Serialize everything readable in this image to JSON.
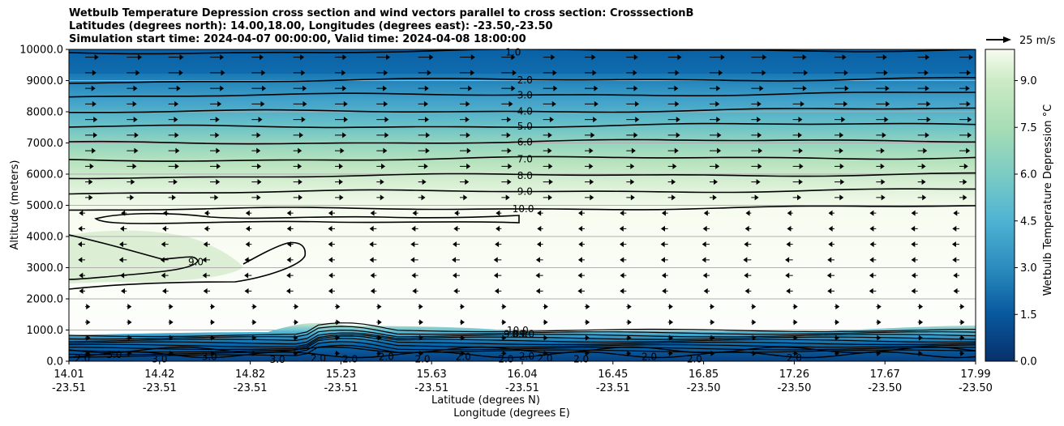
{
  "chart_data": {
    "type": "contourf",
    "title_lines": [
      "Wetbulb Temperature Depression cross section and wind vectors parallel to cross section: CrosssectionB",
      "Latitudes (degrees north): 14.00,18.00, Longitudes (degrees east): -23.50,-23.50",
      "Simulation start time: 2024-04-07 00:00:00, Valid time: 2024-04-08 18:00:00"
    ],
    "ylabel": "Altitude (meters)",
    "xlabel_lat": "Latitude (degrees N)",
    "xlabel_lon": "Longitude (degrees E)",
    "ylim": [
      0,
      10000
    ],
    "yticks": [
      "0.0",
      "1000.0",
      "2000.0",
      "3000.0",
      "4000.0",
      "5000.0",
      "6000.0",
      "7000.0",
      "8000.0",
      "9000.0",
      "10000.0"
    ],
    "xticks": [
      {
        "lat": "14.01",
        "lon": "-23.51"
      },
      {
        "lat": "14.42",
        "lon": "-23.51"
      },
      {
        "lat": "14.82",
        "lon": "-23.51"
      },
      {
        "lat": "15.23",
        "lon": "-23.51"
      },
      {
        "lat": "15.63",
        "lon": "-23.51"
      },
      {
        "lat": "16.04",
        "lon": "-23.51"
      },
      {
        "lat": "16.45",
        "lon": "-23.51"
      },
      {
        "lat": "16.85",
        "lon": "-23.50"
      },
      {
        "lat": "17.26",
        "lon": "-23.50"
      },
      {
        "lat": "17.67",
        "lon": "-23.50"
      },
      {
        "lat": "17.99",
        "lon": "-23.50"
      }
    ],
    "grid": "horizontal",
    "colorbar": {
      "label": "Wetbulb Temperature Depression °C",
      "ticks": [
        "0.0",
        "1.5",
        "3.0",
        "4.5",
        "6.0",
        "7.5",
        "9.0"
      ],
      "range": [
        0,
        10
      ],
      "colormap_start": "#08306b",
      "colormap_mid": "#4aa9cf",
      "colormap_end": "#f7fcf0"
    },
    "quiver_key": {
      "label": "25 m/s",
      "speed": 25
    },
    "contour_lines": [
      {
        "label": "1.0",
        "altitude": 9950
      },
      {
        "label": "2.0",
        "altitude": 9020
      },
      {
        "label": "3.0",
        "altitude": 8550
      },
      {
        "label": "4.0",
        "altitude": 8030
      },
      {
        "label": "5.0",
        "altitude": 7550
      },
      {
        "label": "6.0",
        "altitude": 7040
      },
      {
        "label": "7.0",
        "altitude": 6500
      },
      {
        "label": "8.0",
        "altitude": 5960
      },
      {
        "label": "9.0",
        "altitude": 5450
      },
      {
        "label": "10.0",
        "altitude": 4900
      }
    ],
    "contour_label_positions": [
      {
        "label": "1.0",
        "x": 0.49,
        "alt": 9920
      },
      {
        "label": "2.0",
        "x": 0.503,
        "alt": 9020
      },
      {
        "label": "3.0",
        "x": 0.503,
        "alt": 8550
      },
      {
        "label": "4.0",
        "x": 0.503,
        "alt": 8030
      },
      {
        "label": "5.0",
        "x": 0.503,
        "alt": 7550
      },
      {
        "label": "6.0",
        "x": 0.503,
        "alt": 7040
      },
      {
        "label": "7.0",
        "x": 0.503,
        "alt": 6500
      },
      {
        "label": "8.0",
        "x": 0.503,
        "alt": 5960
      },
      {
        "label": "9.0",
        "x": 0.503,
        "alt": 5450
      },
      {
        "label": "10.0",
        "x": 0.501,
        "alt": 4900
      },
      {
        "label": "9.0",
        "x": 0.14,
        "alt": 3200
      },
      {
        "label": "10.0",
        "x": 0.495,
        "alt": 1000
      },
      {
        "label": "9.0",
        "x": 0.488,
        "alt": 880
      },
      {
        "label": "8.0",
        "x": 0.497,
        "alt": 880
      },
      {
        "label": "9.0",
        "x": 0.505,
        "alt": 880
      },
      {
        "label": "2.0",
        "x": 0.015,
        "alt": 100
      },
      {
        "label": "3.0",
        "x": 0.05,
        "alt": 220
      },
      {
        "label": "3.0",
        "x": 0.1,
        "alt": 80
      },
      {
        "label": "3.0",
        "x": 0.155,
        "alt": 160
      },
      {
        "label": "3.0",
        "x": 0.23,
        "alt": 60
      },
      {
        "label": "2.0",
        "x": 0.275,
        "alt": 100
      },
      {
        "label": "2.0",
        "x": 0.31,
        "alt": 80
      },
      {
        "label": "2.0",
        "x": 0.35,
        "alt": 150
      },
      {
        "label": "2.0",
        "x": 0.39,
        "alt": 80
      },
      {
        "label": "2.0",
        "x": 0.435,
        "alt": 150
      },
      {
        "label": "2.0",
        "x": 0.482,
        "alt": 80
      },
      {
        "label": "2.0",
        "x": 0.505,
        "alt": 170
      },
      {
        "label": "2.0",
        "x": 0.525,
        "alt": 100
      },
      {
        "label": "2.0",
        "x": 0.565,
        "alt": 80
      },
      {
        "label": "2.0",
        "x": 0.64,
        "alt": 160
      },
      {
        "label": "2.0",
        "x": 0.69,
        "alt": 80
      },
      {
        "label": "2.0",
        "x": 0.8,
        "alt": 120
      }
    ]
  }
}
